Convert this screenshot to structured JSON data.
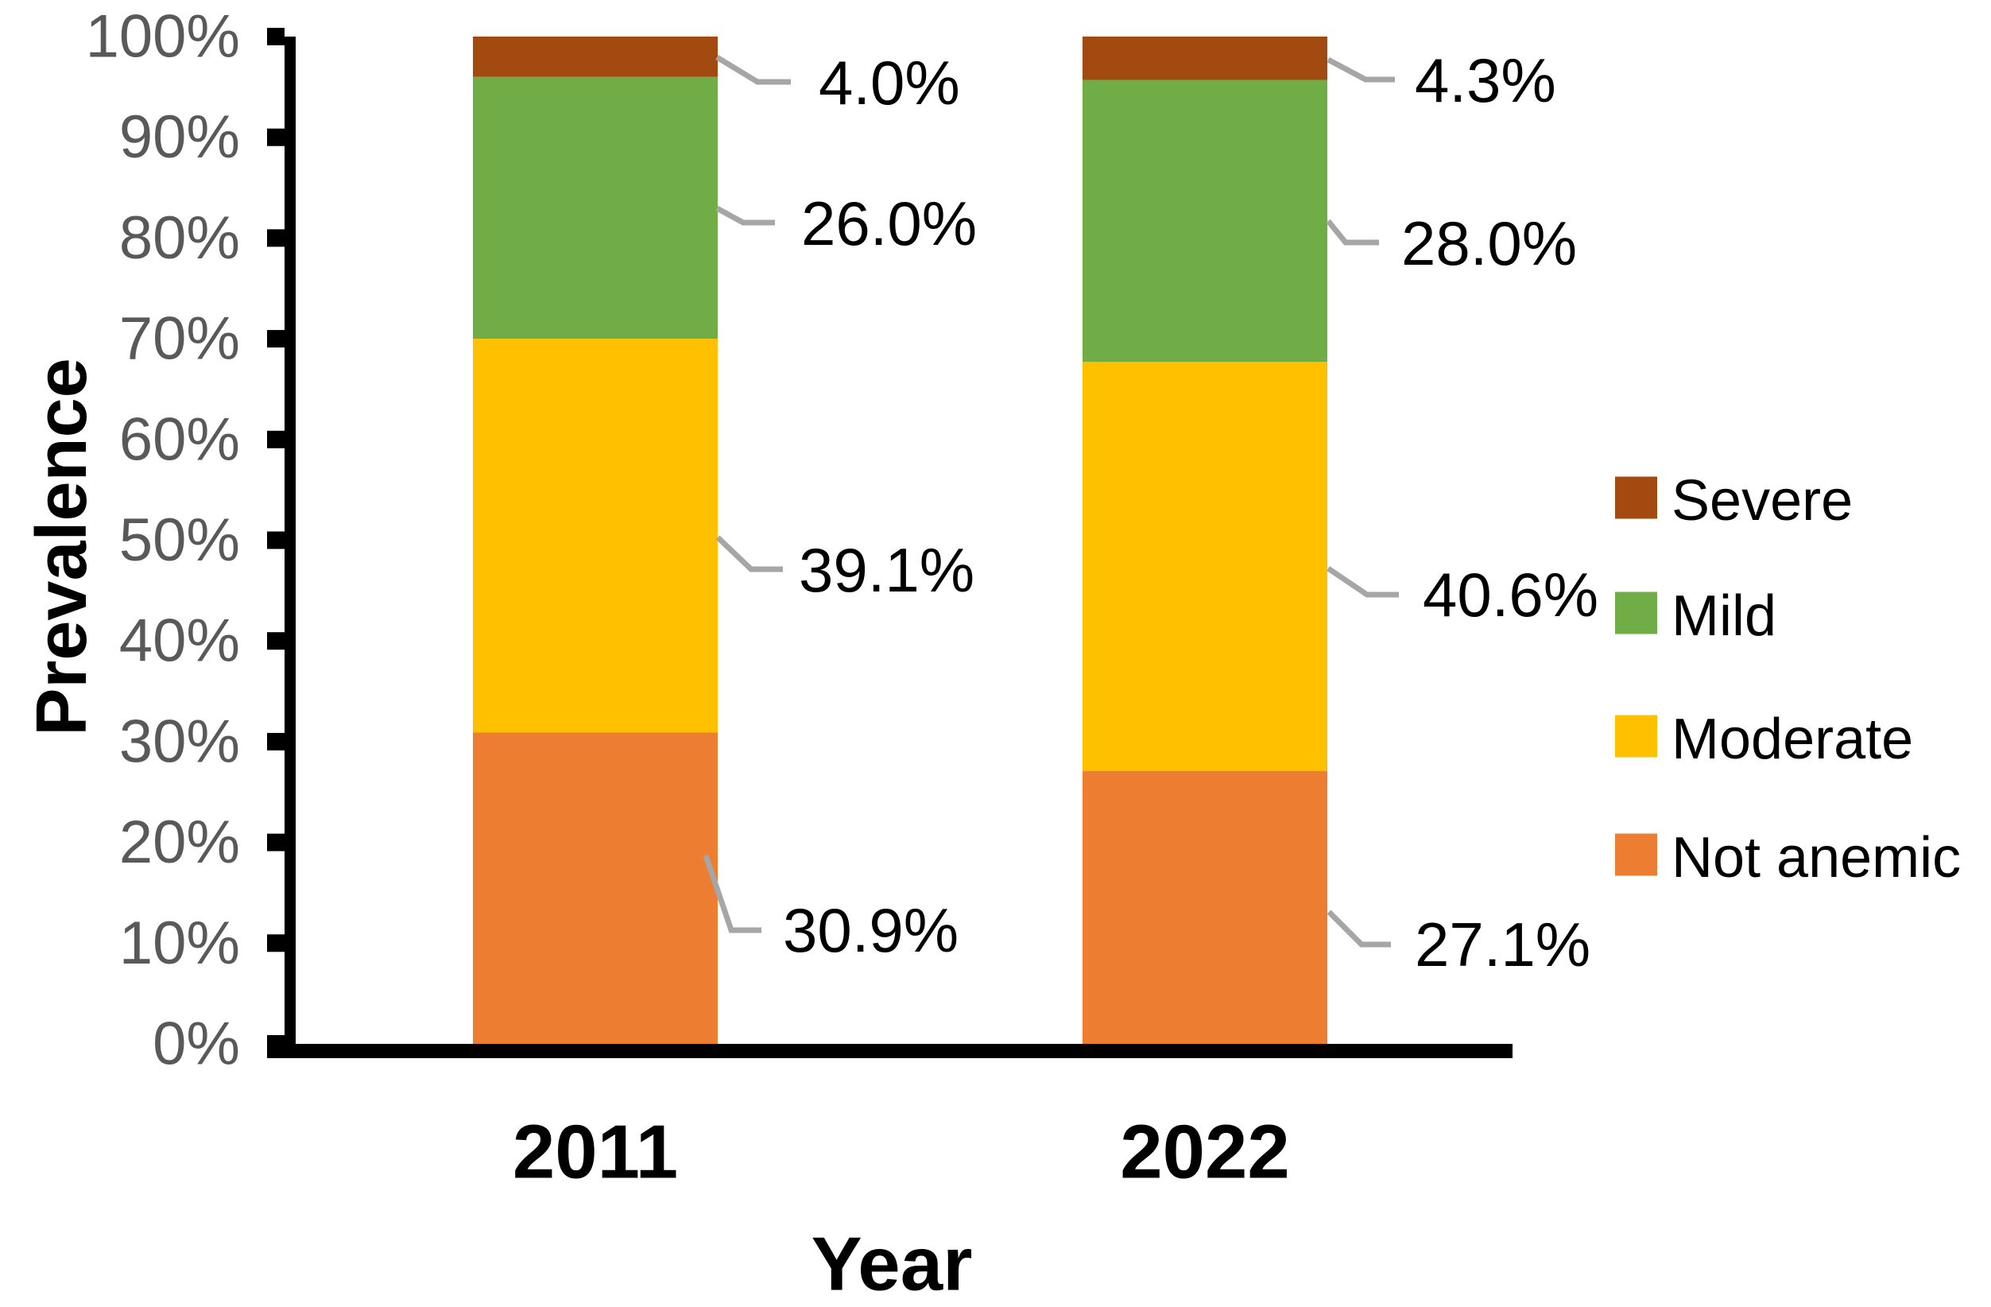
{
  "chart_data": {
    "type": "bar",
    "stacked": true,
    "orientation": "vertical",
    "title": "",
    "xlabel": "Year",
    "ylabel": "Prevalence",
    "categories": [
      "2011",
      "2022"
    ],
    "series": [
      {
        "name": "Not anemic",
        "color": "#ED7D31",
        "values": [
          30.9,
          27.1
        ]
      },
      {
        "name": "Moderate",
        "color": "#FFC000",
        "values": [
          39.1,
          40.6
        ]
      },
      {
        "name": "Mild",
        "color": "#70AD47",
        "values": [
          26.0,
          28.0
        ]
      },
      {
        "name": "Severe",
        "color": "#A34A10",
        "values": [
          4.0,
          4.3
        ]
      }
    ],
    "data_labels": [
      [
        "30.9%",
        "39.1%",
        "26.0%",
        "4.0%"
      ],
      [
        "27.1%",
        "40.6%",
        "28.0%",
        "4.3%"
      ]
    ],
    "y_ticks": [
      "0%",
      "10%",
      "20%",
      "30%",
      "40%",
      "50%",
      "60%",
      "70%",
      "80%",
      "90%",
      "100%"
    ],
    "ylim": [
      0,
      100
    ],
    "grid": false,
    "legend": {
      "position": "right",
      "entries": [
        "Severe",
        "Mild",
        "Moderate",
        "Not anemic"
      ]
    }
  },
  "colors": {
    "leader_line": "#A6A6A6",
    "tick_text": "#595959",
    "axis": "#000000",
    "background": "#FFFFFF"
  }
}
